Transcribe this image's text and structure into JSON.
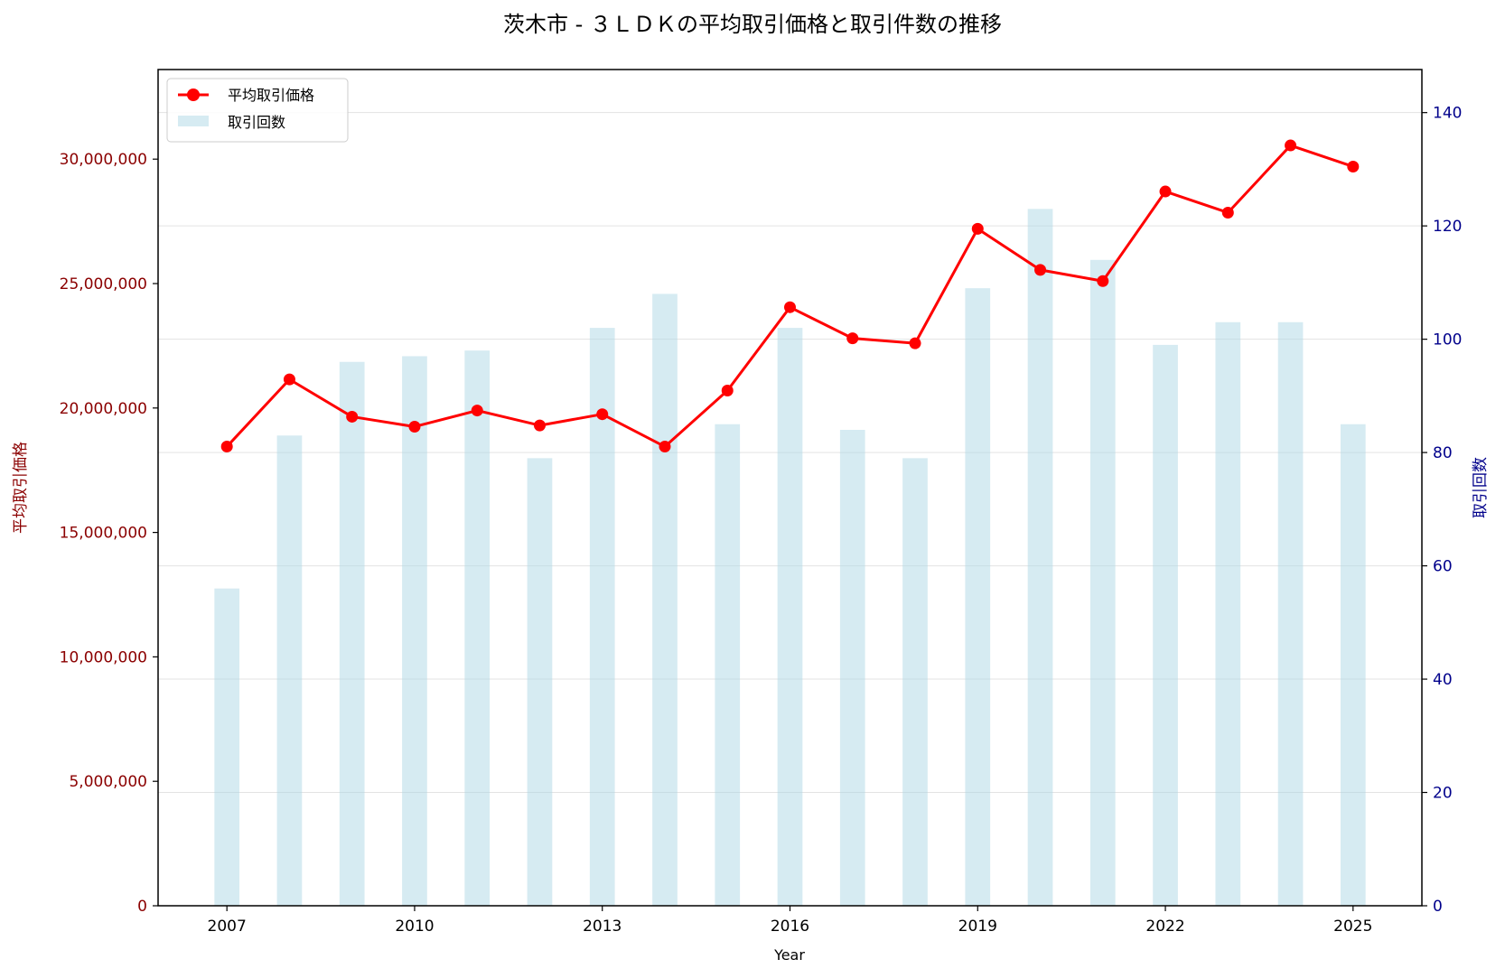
{
  "chart_data": {
    "type": "bar+line",
    "title": "茨木市 - ３ＬＤＫの平均取引価格と取引件数の推移",
    "xlabel": "Year",
    "ylabel_left": "平均取引価格",
    "ylabel_right": "取引回数",
    "x": [
      2007,
      2008,
      2009,
      2010,
      2011,
      2012,
      2013,
      2014,
      2015,
      2016,
      2017,
      2018,
      2019,
      2020,
      2021,
      2022,
      2023,
      2024,
      2025
    ],
    "x_ticks": [
      "2007",
      "2010",
      "2013",
      "2016",
      "2019",
      "2022",
      "2025"
    ],
    "xlim": [
      2005.9,
      2026.1
    ],
    "y_left_ticks": [
      "0",
      "5,000,000",
      "10,000,000",
      "15,000,000",
      "20,000,000",
      "25,000,000",
      "30,000,000"
    ],
    "y_right_ticks": [
      "0",
      "20",
      "40",
      "60",
      "80",
      "100",
      "120",
      "140"
    ],
    "ylim_left": [
      0,
      33600000
    ],
    "ylim_right": [
      0,
      147.6
    ],
    "series": [
      {
        "name": "平均取引価格",
        "axis": "left",
        "kind": "line",
        "color": "#ff0000",
        "values": [
          18450000,
          21150000,
          19650000,
          19250000,
          19900000,
          19300000,
          19750000,
          18450000,
          20700000,
          24050000,
          22800000,
          22600000,
          27200000,
          25550000,
          25100000,
          28700000,
          27850000,
          30550000,
          29700000
        ]
      },
      {
        "name": "取引回数",
        "axis": "right",
        "kind": "bar",
        "color": "#add8e6",
        "values": [
          56,
          83,
          96,
          97,
          98,
          79,
          102,
          108,
          85,
          102,
          84,
          79,
          109,
          123,
          114,
          99,
          103,
          103,
          85
        ]
      }
    ],
    "legend_position": "top-left",
    "grid": "horizontal",
    "colors": {
      "left_axis": "#8b0000",
      "right_axis": "#00008b",
      "line": "#ff0000",
      "bar": "#add8e6"
    }
  }
}
